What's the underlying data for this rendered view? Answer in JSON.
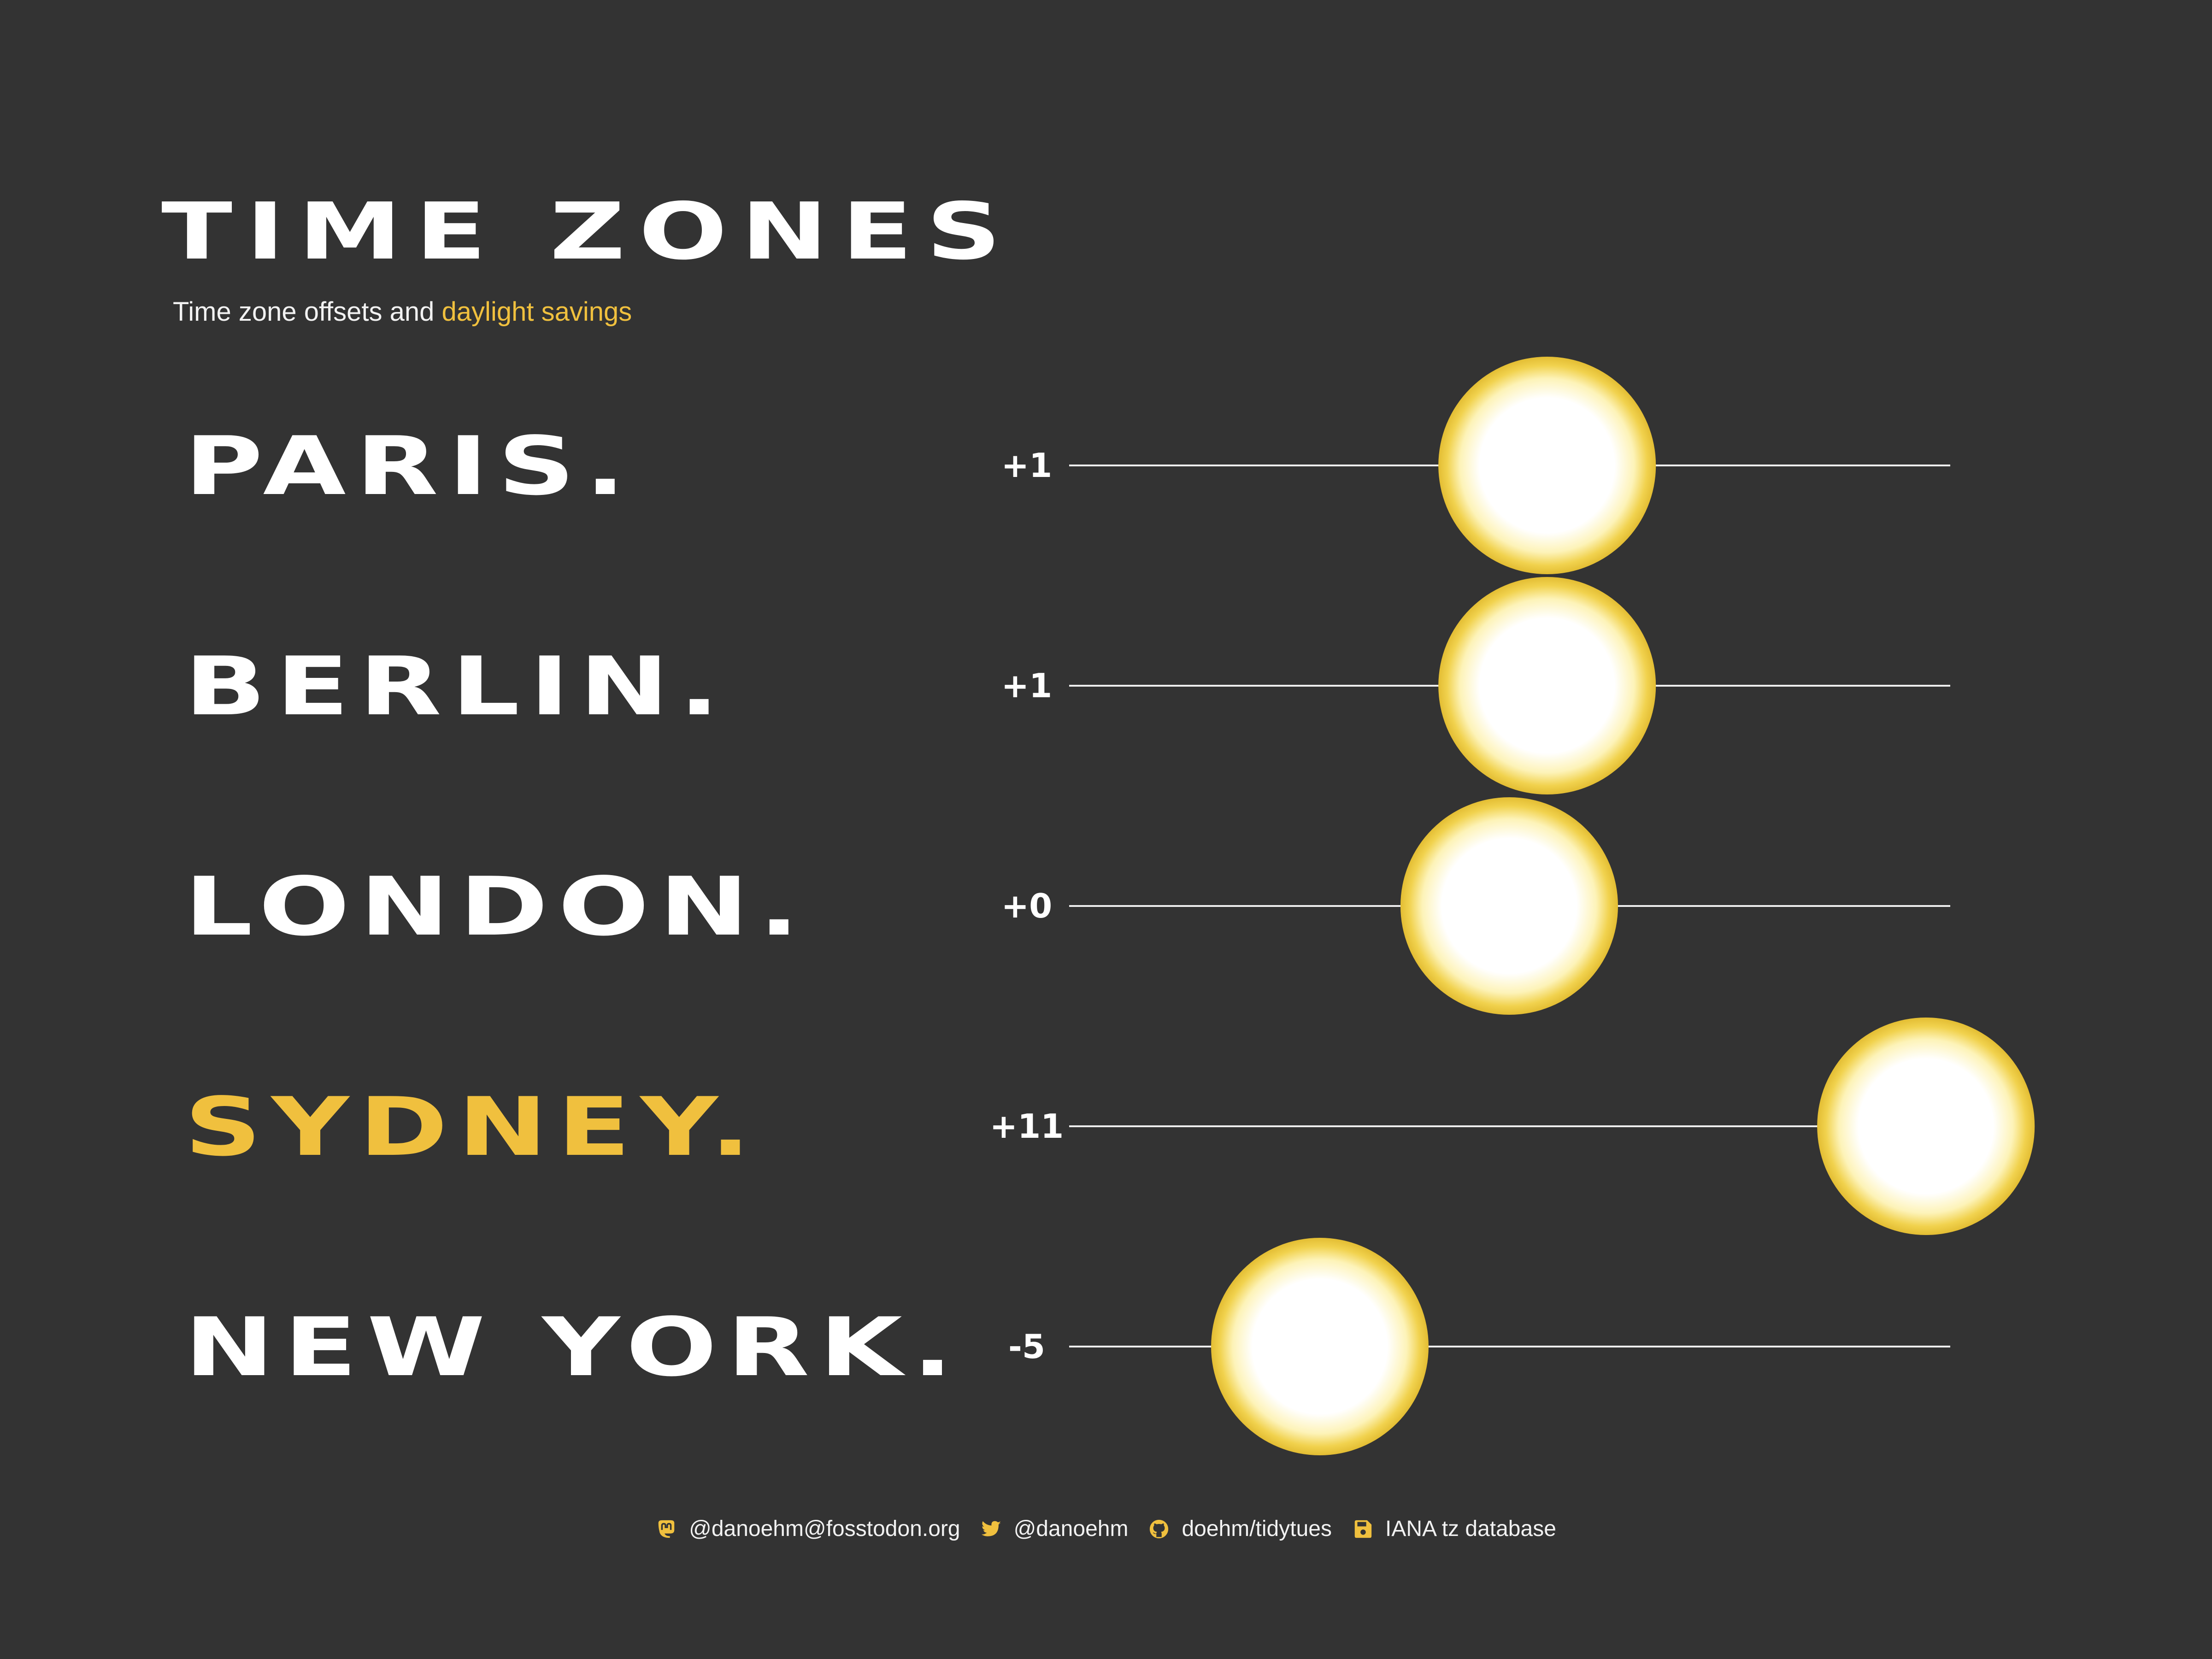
{
  "header": {
    "title": "TIME ZONES",
    "subtitle_prefix": "Time zone offsets and ",
    "subtitle_highlight": "daylight savings"
  },
  "colors": {
    "background": "#333333",
    "text": "#ffffff",
    "accent": "#f0c03e",
    "line": "#eeeeee",
    "sun_core": "#ffffff",
    "sun_edge": "#e8c437"
  },
  "chart_data": {
    "type": "scatter",
    "title": "TIME ZONES",
    "subtitle": "Time zone offsets and daylight savings",
    "xlabel": "",
    "ylabel": "",
    "grid": false,
    "x_axis_range": [
      -10,
      12
    ],
    "categories": [
      "PARIS.",
      "BERLIN.",
      "LONDON.",
      "SYDNEY.",
      "NEW YORK."
    ],
    "offset_labels": [
      "+1",
      "+1",
      "+0",
      "+11",
      "-5"
    ],
    "values": [
      1,
      1,
      0,
      11,
      -5
    ],
    "highlighted": [
      "SYDNEY."
    ],
    "marker": "sun"
  },
  "footer": {
    "items": [
      {
        "icon": "mastodon-icon",
        "text": "@danoehm@fosstodon.org"
      },
      {
        "icon": "twitter-icon",
        "text": "@danoehm"
      },
      {
        "icon": "github-icon",
        "text": "doehm/tidytues"
      },
      {
        "icon": "save-icon",
        "text": "IANA tz database"
      }
    ]
  }
}
